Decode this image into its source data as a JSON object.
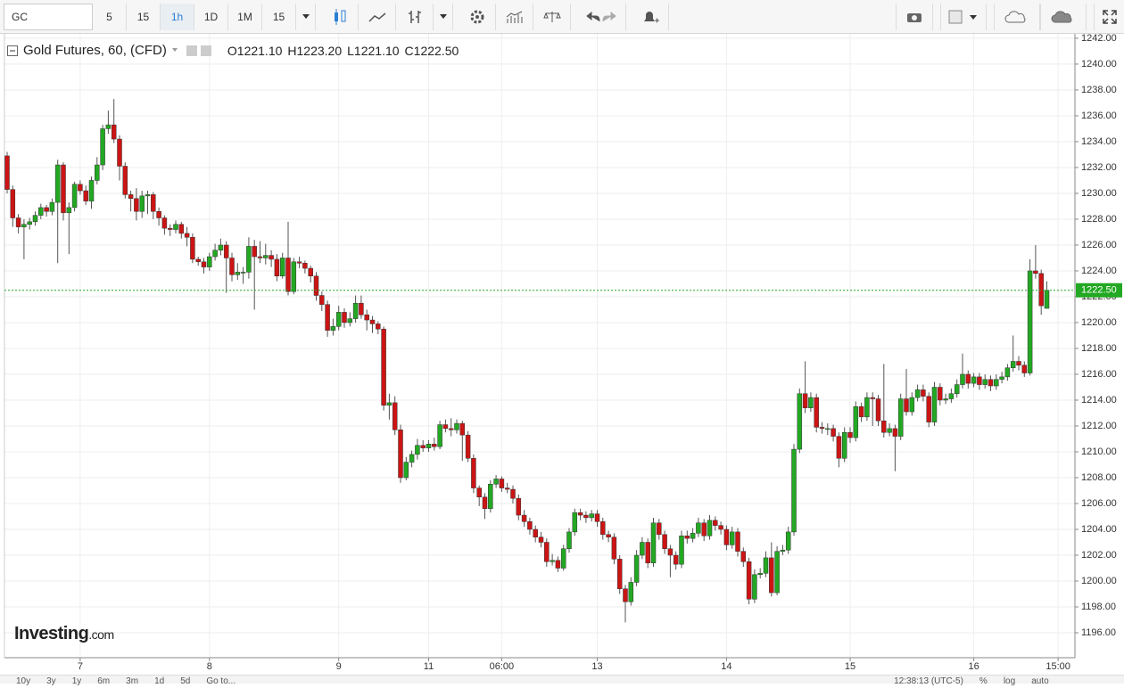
{
  "toolbar": {
    "symbol": "GC",
    "intervals": [
      "5",
      "15",
      "1h",
      "1D",
      "1M",
      "15"
    ]
  },
  "chart_data": {
    "type": "candlestick",
    "title": "Gold Futures, 60, (CFD)",
    "ohlc_legend": [
      {
        "label": "O",
        "value": "1221.10"
      },
      {
        "label": "H",
        "value": "1223.20"
      },
      {
        "label": "L",
        "value": "1221.10"
      },
      {
        "label": "C",
        "value": "1222.50"
      }
    ],
    "up_color": "#22a822",
    "down_color": "#cc1414",
    "wick_color": "#555555",
    "grid": true,
    "ylim": [
      1194.07,
      1242.34
    ],
    "yticks": [
      {
        "value": 1196,
        "label": "1196.00"
      },
      {
        "value": 1198,
        "label": "1198.00"
      },
      {
        "value": 1200,
        "label": "1200.00"
      },
      {
        "value": 1202,
        "label": "1202.00"
      },
      {
        "value": 1204,
        "label": "1204.00"
      },
      {
        "value": 1206,
        "label": "1206.00"
      },
      {
        "value": 1208,
        "label": "1208.00"
      },
      {
        "value": 1210,
        "label": "1210.00"
      },
      {
        "value": 1212,
        "label": "1212.00"
      },
      {
        "value": 1214,
        "label": "1214.00"
      },
      {
        "value": 1216,
        "label": "1216.00"
      },
      {
        "value": 1218,
        "label": "1218.00"
      },
      {
        "value": 1220,
        "label": "1220.00"
      },
      {
        "value": 1222,
        "label": "1222.00"
      },
      {
        "value": 1224,
        "label": "1224.00"
      },
      {
        "value": 1226,
        "label": "1226.00"
      },
      {
        "value": 1228,
        "label": "1228.00"
      },
      {
        "value": 1230,
        "label": "1230.00"
      },
      {
        "value": 1232,
        "label": "1232.00"
      },
      {
        "value": 1234,
        "label": "1234.00"
      },
      {
        "value": 1236,
        "label": "1236.00"
      },
      {
        "value": 1238,
        "label": "1238.00"
      },
      {
        "value": 1240,
        "label": "1240.00"
      },
      {
        "value": 1242,
        "label": "1242.00"
      }
    ],
    "last_price": {
      "value": 1222.5,
      "label": "1222.50",
      "color": "#22a822"
    },
    "categories": [
      null,
      null,
      null,
      null,
      null,
      null,
      null,
      null,
      null,
      null,
      null,
      null,
      null,
      "7",
      null,
      null,
      null,
      null,
      null,
      null,
      null,
      null,
      null,
      null,
      null,
      null,
      null,
      null,
      null,
      null,
      null,
      null,
      null,
      null,
      null,
      null,
      "8",
      null,
      null,
      null,
      null,
      null,
      null,
      null,
      null,
      null,
      null,
      null,
      null,
      null,
      null,
      null,
      null,
      null,
      null,
      null,
      null,
      null,
      null,
      "9",
      null,
      null,
      null,
      null,
      null,
      null,
      null,
      null,
      null,
      null,
      null,
      null,
      null,
      null,
      null,
      "11",
      null,
      null,
      null,
      null,
      null,
      null,
      null,
      null,
      null,
      null,
      null,
      null,
      "06:00",
      null,
      null,
      null,
      null,
      null,
      null,
      null,
      null,
      null,
      null,
      null,
      null,
      null,
      null,
      null,
      null,
      "13",
      null,
      null,
      null,
      null,
      null,
      null,
      null,
      null,
      null,
      null,
      null,
      null,
      null,
      null,
      null,
      null,
      null,
      null,
      null,
      null,
      null,
      null,
      "14",
      null,
      null,
      null,
      null,
      null,
      null,
      null,
      null,
      null,
      null,
      null,
      null,
      null,
      null,
      null,
      null,
      null,
      null,
      null,
      null,
      null,
      "15",
      null,
      null,
      null,
      null,
      null,
      null,
      null,
      null,
      null,
      null,
      null,
      null,
      null,
      null,
      null,
      null,
      null,
      null,
      null,
      null,
      null,
      "16",
      null,
      null,
      null,
      null,
      null,
      null,
      null,
      null,
      null,
      null,
      null,
      null,
      null,
      null,
      "15:00"
    ],
    "ohlc": [
      [
        1232.9,
        1233.2,
        1230.0,
        1230.3
      ],
      [
        1230.3,
        1230.6,
        1227.4,
        1228.1
      ],
      [
        1228.1,
        1228.4,
        1226.9,
        1227.4
      ],
      [
        1227.4,
        1228.0,
        1224.9,
        1227.6
      ],
      [
        1227.6,
        1228.1,
        1227.2,
        1227.8
      ],
      [
        1227.8,
        1228.6,
        1227.5,
        1228.3
      ],
      [
        1228.3,
        1229.2,
        1228.0,
        1228.9
      ],
      [
        1228.9,
        1229.1,
        1228.2,
        1228.6
      ],
      [
        1228.6,
        1229.6,
        1228.3,
        1229.3
      ],
      [
        1229.3,
        1232.6,
        1224.6,
        1232.2
      ],
      [
        1232.2,
        1232.4,
        1227.9,
        1228.5
      ],
      [
        1228.5,
        1229.3,
        1225.3,
        1228.9
      ],
      [
        1228.9,
        1230.9,
        1228.6,
        1230.7
      ],
      [
        1230.7,
        1231.0,
        1229.9,
        1230.2
      ],
      [
        1230.2,
        1230.6,
        1229.1,
        1229.4
      ],
      [
        1229.4,
        1231.3,
        1228.8,
        1231.0
      ],
      [
        1231.0,
        1232.8,
        1230.7,
        1232.2
      ],
      [
        1232.2,
        1235.3,
        1231.8,
        1235.0
      ],
      [
        1235.0,
        1236.4,
        1234.6,
        1235.3
      ],
      [
        1235.3,
        1237.3,
        1233.9,
        1234.2
      ],
      [
        1234.2,
        1234.5,
        1231.0,
        1232.1
      ],
      [
        1232.1,
        1232.4,
        1229.6,
        1229.9
      ],
      [
        1229.9,
        1230.2,
        1228.6,
        1229.6
      ],
      [
        1229.6,
        1230.4,
        1227.9,
        1228.6
      ],
      [
        1228.6,
        1230.2,
        1228.1,
        1229.8
      ],
      [
        1229.8,
        1230.2,
        1228.4,
        1229.9
      ],
      [
        1229.9,
        1230.1,
        1228.0,
        1228.6
      ],
      [
        1228.6,
        1228.9,
        1227.5,
        1228.1
      ],
      [
        1228.1,
        1228.3,
        1226.8,
        1227.3
      ],
      [
        1227.3,
        1227.6,
        1226.7,
        1227.2
      ],
      [
        1227.2,
        1227.9,
        1226.9,
        1227.6
      ],
      [
        1227.6,
        1227.8,
        1226.5,
        1226.9
      ],
      [
        1226.9,
        1227.4,
        1225.9,
        1226.6
      ],
      [
        1226.6,
        1226.9,
        1224.6,
        1224.9
      ],
      [
        1224.9,
        1225.1,
        1224.4,
        1224.7
      ],
      [
        1224.7,
        1225.0,
        1223.8,
        1224.3
      ],
      [
        1224.3,
        1225.4,
        1224.0,
        1225.1
      ],
      [
        1225.1,
        1226.1,
        1224.8,
        1225.6
      ],
      [
        1225.6,
        1226.5,
        1225.2,
        1226.0
      ],
      [
        1226.0,
        1226.3,
        1222.3,
        1225.0
      ],
      [
        1225.0,
        1225.4,
        1223.2,
        1223.7
      ],
      [
        1223.7,
        1224.6,
        1223.3,
        1223.9
      ],
      [
        1223.9,
        1224.3,
        1223.0,
        1223.9
      ],
      [
        1223.9,
        1226.6,
        1223.4,
        1225.9
      ],
      [
        1225.9,
        1226.4,
        1221.0,
        1225.1
      ],
      [
        1225.1,
        1226.3,
        1224.6,
        1225.0
      ],
      [
        1225.0,
        1226.1,
        1224.5,
        1225.2
      ],
      [
        1225.2,
        1225.6,
        1224.3,
        1224.9
      ],
      [
        1224.9,
        1225.3,
        1223.2,
        1223.6
      ],
      [
        1223.6,
        1225.4,
        1223.4,
        1225.0
      ],
      [
        1225.0,
        1227.8,
        1222.1,
        1222.4
      ],
      [
        1222.4,
        1225.0,
        1222.2,
        1224.7
      ],
      [
        1224.7,
        1225.1,
        1224.2,
        1224.6
      ],
      [
        1224.6,
        1224.8,
        1223.8,
        1224.2
      ],
      [
        1224.2,
        1224.4,
        1223.1,
        1223.6
      ],
      [
        1223.6,
        1223.9,
        1221.7,
        1222.1
      ],
      [
        1222.1,
        1222.4,
        1220.9,
        1221.4
      ],
      [
        1221.4,
        1221.7,
        1218.9,
        1219.4
      ],
      [
        1219.4,
        1220.3,
        1219.0,
        1219.7
      ],
      [
        1219.7,
        1221.3,
        1219.4,
        1220.8
      ],
      [
        1220.8,
        1221.1,
        1219.6,
        1220.0
      ],
      [
        1220.0,
        1220.8,
        1219.7,
        1220.3
      ],
      [
        1220.3,
        1222.1,
        1220.0,
        1221.5
      ],
      [
        1221.5,
        1222.1,
        1220.3,
        1220.6
      ],
      [
        1220.6,
        1221.0,
        1219.4,
        1220.2
      ],
      [
        1220.2,
        1220.5,
        1219.2,
        1219.9
      ],
      [
        1219.9,
        1220.1,
        1219.1,
        1219.5
      ],
      [
        1219.5,
        1219.7,
        1213.2,
        1213.6
      ],
      [
        1213.6,
        1214.5,
        1212.5,
        1213.8
      ],
      [
        1213.8,
        1214.3,
        1211.3,
        1211.7
      ],
      [
        1211.7,
        1212.1,
        1207.6,
        1208.0
      ],
      [
        1208.0,
        1209.6,
        1207.8,
        1209.2
      ],
      [
        1209.2,
        1210.1,
        1208.8,
        1209.8
      ],
      [
        1209.8,
        1211.0,
        1209.4,
        1210.5
      ],
      [
        1210.5,
        1210.9,
        1210.0,
        1210.3
      ],
      [
        1210.3,
        1210.9,
        1210.0,
        1210.6
      ],
      [
        1210.6,
        1211.1,
        1210.1,
        1210.4
      ],
      [
        1210.4,
        1212.4,
        1210.2,
        1212.1
      ],
      [
        1212.1,
        1212.5,
        1211.5,
        1211.8
      ],
      [
        1211.8,
        1212.6,
        1211.2,
        1211.7
      ],
      [
        1211.7,
        1212.5,
        1211.4,
        1212.2
      ],
      [
        1212.2,
        1212.4,
        1209.3,
        1211.3
      ],
      [
        1211.3,
        1211.6,
        1209.2,
        1209.5
      ],
      [
        1209.5,
        1209.8,
        1206.8,
        1207.2
      ],
      [
        1207.2,
        1207.4,
        1205.8,
        1206.5
      ],
      [
        1206.5,
        1206.8,
        1204.8,
        1205.6
      ],
      [
        1205.6,
        1207.8,
        1205.3,
        1207.5
      ],
      [
        1207.5,
        1208.2,
        1207.2,
        1207.9
      ],
      [
        1207.9,
        1208.1,
        1206.9,
        1207.2
      ],
      [
        1207.2,
        1207.6,
        1206.8,
        1207.1
      ],
      [
        1207.1,
        1207.4,
        1206.0,
        1206.4
      ],
      [
        1206.4,
        1206.7,
        1204.7,
        1205.1
      ],
      [
        1205.1,
        1205.5,
        1204.2,
        1204.6
      ],
      [
        1204.6,
        1204.9,
        1203.6,
        1204.0
      ],
      [
        1204.0,
        1204.3,
        1203.0,
        1203.4
      ],
      [
        1203.4,
        1203.8,
        1202.6,
        1203.0
      ],
      [
        1203.0,
        1203.3,
        1201.1,
        1201.5
      ],
      [
        1201.5,
        1202.1,
        1201.2,
        1201.6
      ],
      [
        1201.6,
        1201.9,
        1200.7,
        1201.0
      ],
      [
        1201.0,
        1202.8,
        1200.8,
        1202.5
      ],
      [
        1202.5,
        1204.1,
        1202.2,
        1203.8
      ],
      [
        1203.8,
        1205.6,
        1203.5,
        1205.3
      ],
      [
        1205.3,
        1205.6,
        1204.7,
        1205.1
      ],
      [
        1205.1,
        1205.4,
        1204.5,
        1204.9
      ],
      [
        1204.9,
        1205.5,
        1204.6,
        1205.2
      ],
      [
        1205.2,
        1205.5,
        1204.2,
        1204.6
      ],
      [
        1204.6,
        1204.9,
        1203.2,
        1203.6
      ],
      [
        1203.6,
        1203.9,
        1203.0,
        1203.4
      ],
      [
        1203.4,
        1203.7,
        1201.3,
        1201.7
      ],
      [
        1201.7,
        1202.0,
        1199.0,
        1199.4
      ],
      [
        1199.4,
        1199.7,
        1196.8,
        1198.4
      ],
      [
        1198.4,
        1200.3,
        1198.1,
        1199.9
      ],
      [
        1199.9,
        1202.4,
        1199.6,
        1202.0
      ],
      [
        1202.0,
        1203.4,
        1201.7,
        1203.0
      ],
      [
        1203.0,
        1203.3,
        1201.0,
        1201.4
      ],
      [
        1201.4,
        1204.9,
        1201.1,
        1204.5
      ],
      [
        1204.5,
        1204.8,
        1203.2,
        1203.6
      ],
      [
        1203.6,
        1203.9,
        1202.1,
        1202.5
      ],
      [
        1202.5,
        1202.8,
        1200.3,
        1202.0
      ],
      [
        1202.0,
        1202.3,
        1200.9,
        1201.3
      ],
      [
        1201.3,
        1203.9,
        1201.0,
        1203.5
      ],
      [
        1203.5,
        1203.9,
        1202.9,
        1203.3
      ],
      [
        1203.3,
        1204.1,
        1203.0,
        1203.7
      ],
      [
        1203.7,
        1204.9,
        1203.4,
        1204.5
      ],
      [
        1204.5,
        1204.8,
        1203.1,
        1203.5
      ],
      [
        1203.5,
        1205.1,
        1203.2,
        1204.7
      ],
      [
        1204.7,
        1205.0,
        1203.9,
        1204.3
      ],
      [
        1204.3,
        1204.6,
        1203.6,
        1204.0
      ],
      [
        1204.0,
        1204.3,
        1202.4,
        1202.8
      ],
      [
        1202.8,
        1204.2,
        1202.5,
        1203.8
      ],
      [
        1203.8,
        1204.1,
        1201.9,
        1202.3
      ],
      [
        1202.3,
        1202.6,
        1201.1,
        1201.5
      ],
      [
        1201.5,
        1201.8,
        1198.2,
        1198.6
      ],
      [
        1198.6,
        1200.9,
        1198.3,
        1200.5
      ],
      [
        1200.5,
        1201.0,
        1200.2,
        1200.6
      ],
      [
        1200.6,
        1202.3,
        1200.3,
        1201.8
      ],
      [
        1201.8,
        1203.0,
        1198.8,
        1199.1
      ],
      [
        1199.1,
        1202.7,
        1198.9,
        1202.3
      ],
      [
        1202.3,
        1202.8,
        1202.0,
        1202.4
      ],
      [
        1202.4,
        1204.2,
        1202.1,
        1203.8
      ],
      [
        1203.8,
        1210.6,
        1203.5,
        1210.2
      ],
      [
        1210.2,
        1214.9,
        1209.9,
        1214.5
      ],
      [
        1214.5,
        1217.0,
        1213.0,
        1213.4
      ],
      [
        1213.4,
        1214.6,
        1213.1,
        1214.2
      ],
      [
        1214.2,
        1214.5,
        1211.5,
        1211.9
      ],
      [
        1211.9,
        1212.3,
        1211.4,
        1211.8
      ],
      [
        1211.8,
        1212.2,
        1211.3,
        1211.8
      ],
      [
        1211.8,
        1212.1,
        1210.8,
        1211.2
      ],
      [
        1211.2,
        1211.5,
        1208.8,
        1209.5
      ],
      [
        1209.5,
        1211.9,
        1209.2,
        1211.5
      ],
      [
        1211.5,
        1211.9,
        1210.7,
        1211.1
      ],
      [
        1211.1,
        1213.9,
        1210.8,
        1213.5
      ],
      [
        1213.5,
        1213.8,
        1212.3,
        1212.7
      ],
      [
        1212.7,
        1214.6,
        1212.4,
        1214.2
      ],
      [
        1214.2,
        1214.6,
        1212.0,
        1214.1
      ],
      [
        1214.1,
        1214.4,
        1212.0,
        1212.4
      ],
      [
        1212.4,
        1216.8,
        1211.1,
        1211.5
      ],
      [
        1211.5,
        1212.2,
        1211.2,
        1211.8
      ],
      [
        1211.8,
        1212.1,
        1208.5,
        1211.2
      ],
      [
        1211.2,
        1214.5,
        1210.9,
        1214.1
      ],
      [
        1214.1,
        1216.4,
        1212.8,
        1213.1
      ],
      [
        1213.1,
        1214.6,
        1212.8,
        1214.2
      ],
      [
        1214.2,
        1215.2,
        1213.9,
        1214.8
      ],
      [
        1214.8,
        1215.2,
        1213.9,
        1214.3
      ],
      [
        1214.3,
        1214.6,
        1211.9,
        1212.3
      ],
      [
        1212.3,
        1215.4,
        1212.0,
        1215.0
      ],
      [
        1215.0,
        1215.3,
        1213.6,
        1214.0
      ],
      [
        1214.0,
        1214.5,
        1213.7,
        1214.1
      ],
      [
        1214.1,
        1214.9,
        1213.8,
        1214.5
      ],
      [
        1214.5,
        1215.6,
        1214.2,
        1215.2
      ],
      [
        1215.2,
        1217.6,
        1214.9,
        1216.0
      ],
      [
        1216.0,
        1216.3,
        1214.9,
        1215.3
      ],
      [
        1215.3,
        1216.1,
        1215.0,
        1215.8
      ],
      [
        1215.8,
        1216.1,
        1214.8,
        1215.2
      ],
      [
        1215.2,
        1216.0,
        1214.9,
        1215.6
      ],
      [
        1215.6,
        1215.9,
        1214.7,
        1215.1
      ],
      [
        1215.1,
        1216.0,
        1214.8,
        1215.6
      ],
      [
        1215.6,
        1216.2,
        1215.3,
        1215.8
      ],
      [
        1215.8,
        1216.8,
        1215.5,
        1216.5
      ],
      [
        1216.5,
        1219.0,
        1216.2,
        1217.0
      ],
      [
        1217.0,
        1217.4,
        1216.3,
        1216.7
      ],
      [
        1216.7,
        1217.0,
        1215.8,
        1216.1
      ],
      [
        1216.1,
        1224.9,
        1215.9,
        1224.0
      ],
      [
        1224.0,
        1226.0,
        1223.4,
        1223.8
      ],
      [
        1223.8,
        1224.1,
        1220.6,
        1221.3
      ],
      [
        1221.1,
        1223.2,
        1221.1,
        1222.5
      ],
      null,
      null,
      null
    ]
  },
  "watermark": {
    "brand": "Investing",
    "suffix": ".com"
  },
  "footer": {
    "ranges": [
      "10y",
      "3y",
      "1y",
      "6m",
      "3m",
      "1d",
      "5d"
    ],
    "goto": "Go to...",
    "time": "12:38:13 (UTC-5)",
    "options": [
      "%",
      "log",
      "auto"
    ]
  }
}
